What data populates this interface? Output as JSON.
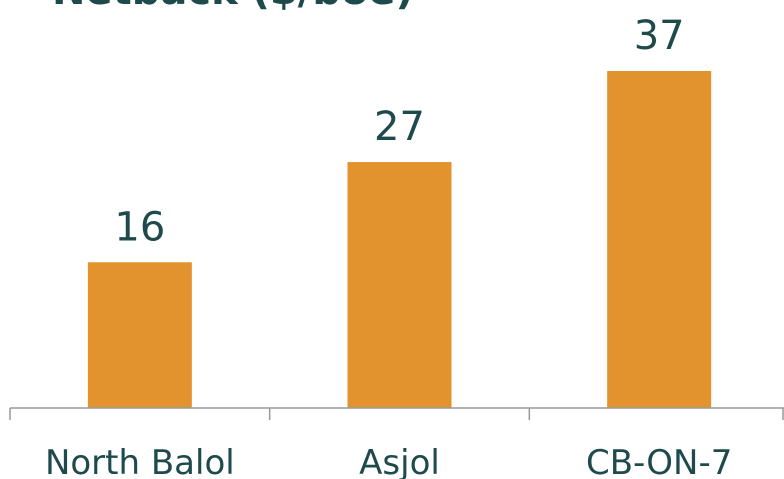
{
  "chart_data": {
    "type": "bar",
    "title": "Netback ($/boe)",
    "categories": [
      "North Balol",
      "Asjol",
      "CB-ON-7"
    ],
    "values": [
      16,
      27,
      37
    ],
    "color": "#e3932e"
  }
}
